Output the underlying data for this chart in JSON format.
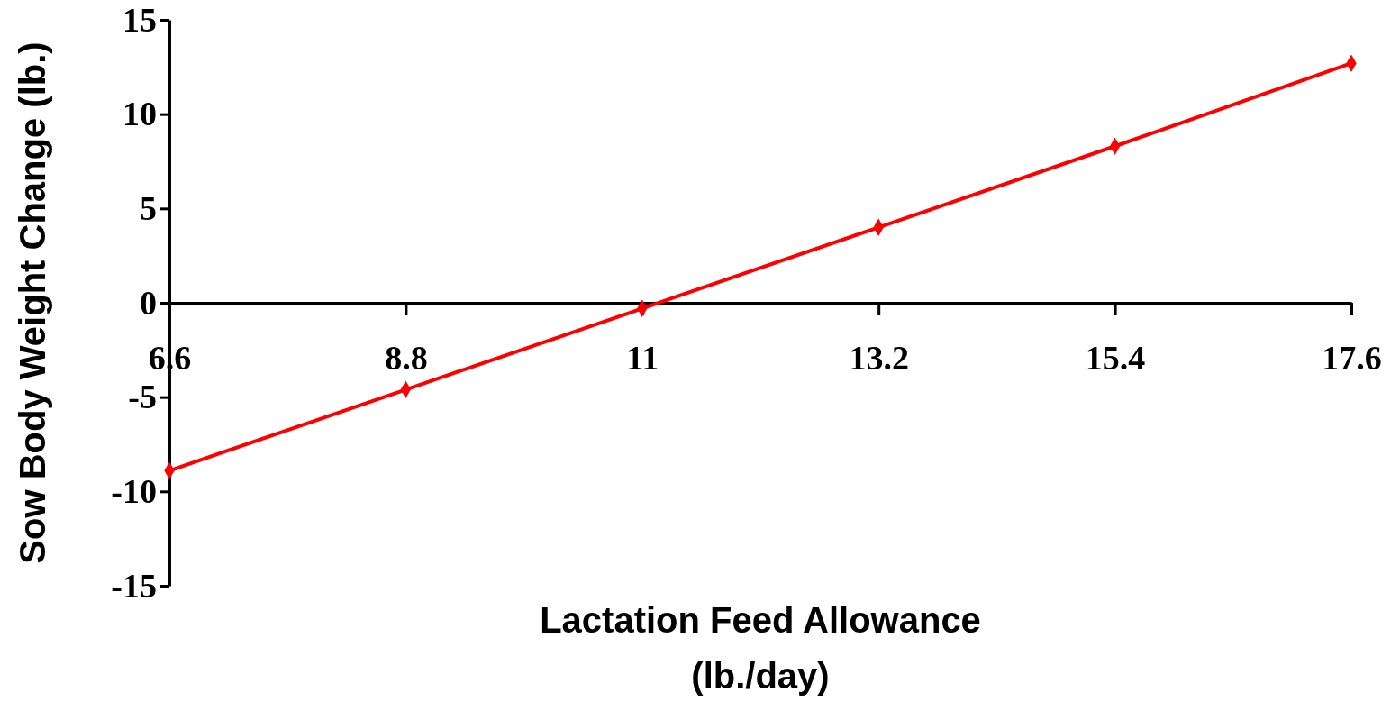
{
  "chart_data": {
    "type": "line",
    "xlabel": "Lactation Feed Allowance (lb./day)",
    "ylabel": "Sow Body Weight Change (lb.)",
    "x": [
      6.6,
      8.8,
      11,
      13.2,
      15.4,
      17.6
    ],
    "series": [
      {
        "color": "#ff0000",
        "values": [
          -8.9,
          -4.6,
          -0.3,
          4.0,
          8.3,
          12.7
        ]
      }
    ],
    "xlim": [
      6.6,
      17.6
    ],
    "xticks": [
      6.6,
      8.8,
      11,
      13.2,
      15.4,
      17.6
    ],
    "ylim": [
      -15,
      15
    ],
    "yticks": [
      -15,
      -10,
      -5,
      0,
      5,
      10,
      15
    ],
    "marker": "diamond",
    "line_style": "solid"
  }
}
